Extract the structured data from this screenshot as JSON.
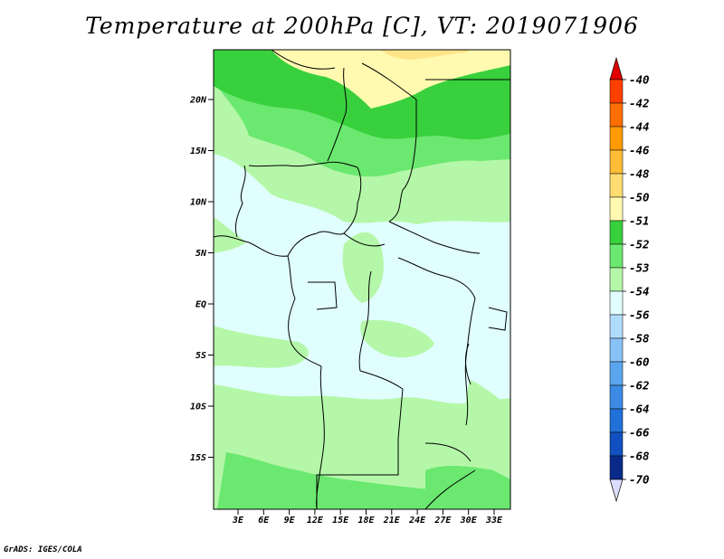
{
  "title": "Temperature at 200hPa [C], VT: 2019071906",
  "credit": "GrADS: IGES/COLA",
  "map": {
    "lat_labels": [
      "20N",
      "15N",
      "10N",
      "5N",
      "EQ",
      "5S",
      "10S",
      "15S"
    ],
    "lon_labels": [
      "3E",
      "6E",
      "9E",
      "12E",
      "15E",
      "18E",
      "21E",
      "24E",
      "27E",
      "30E",
      "33E"
    ]
  },
  "colorbar": {
    "labels": [
      "-40",
      "-42",
      "-44",
      "-46",
      "-48",
      "-50",
      "-51",
      "-52",
      "-53",
      "-54",
      "-56",
      "-58",
      "-60",
      "-62",
      "-64",
      "-66",
      "-68",
      "-70"
    ],
    "colors": [
      "#e10000",
      "#ff4000",
      "#ff6e00",
      "#ff9b00",
      "#ffbc36",
      "#ffdc70",
      "#fffab0",
      "#38d03c",
      "#6be870",
      "#b5f7a8",
      "#e0fefe",
      "#b0dcfc",
      "#88c2f6",
      "#5aa6ee",
      "#3c8ae4",
      "#2070d8",
      "#1050c0",
      "#0a2a8a",
      "#000060"
    ],
    "top_arrow_color": "#e10000",
    "bottom_arrow_color": "#dcdcff"
  },
  "palette": {
    "yellow": "#fffab0",
    "yellow2": "#ffe58a",
    "green_dark": "#38d03c",
    "green_mid": "#6be870",
    "green_light": "#b5f7a8",
    "cyan_light": "#e0fefe"
  }
}
